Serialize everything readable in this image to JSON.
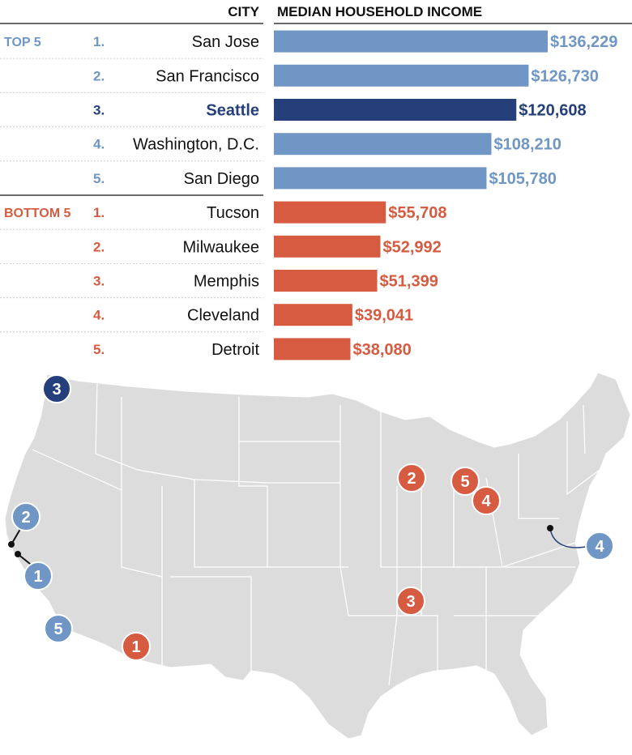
{
  "headers": {
    "city": "CITY",
    "income": "MEDIAN HOUSEHOLD INCOME"
  },
  "colors": {
    "top": "#6f96c4",
    "highlight": "#243f7a",
    "bottom": "#d65b41",
    "map_land": "#dcdcdc",
    "map_border": "#ffffff"
  },
  "chart_data": {
    "type": "bar",
    "orientation": "horizontal",
    "title": "",
    "xlabel": "MEDIAN HOUSEHOLD INCOME",
    "ylabel": "CITY",
    "xlim": [
      0,
      136229
    ],
    "groups": [
      {
        "label": "TOP 5",
        "color": "#6f96c4",
        "items": [
          {
            "rank": "1.",
            "city": "San Jose",
            "value": 136229,
            "value_label": "$136,229"
          },
          {
            "rank": "2.",
            "city": "San Francisco",
            "value": 126730,
            "value_label": "$126,730"
          },
          {
            "rank": "3.",
            "city": "Seattle",
            "value": 120608,
            "value_label": "$120,608",
            "highlight": true
          },
          {
            "rank": "4.",
            "city": "Washington, D.C.",
            "value": 108210,
            "value_label": "$108,210"
          },
          {
            "rank": "5.",
            "city": "San Diego",
            "value": 105780,
            "value_label": "$105,780"
          }
        ]
      },
      {
        "label": "BOTTOM 5",
        "color": "#d65b41",
        "items": [
          {
            "rank": "1.",
            "city": "Tucson",
            "value": 55708,
            "value_label": "$55,708"
          },
          {
            "rank": "2.",
            "city": "Milwaukee",
            "value": 52992,
            "value_label": "$52,992"
          },
          {
            "rank": "3.",
            "city": "Memphis",
            "value": 51399,
            "value_label": "$51,399"
          },
          {
            "rank": "4.",
            "city": "Cleveland",
            "value": 39041,
            "value_label": "$39,041"
          },
          {
            "rank": "5.",
            "city": "Detroit",
            "value": 38080,
            "value_label": "$38,080"
          }
        ]
      }
    ]
  },
  "map": {
    "markers": [
      {
        "label": "3",
        "group": "top",
        "city": "Seattle",
        "highlight": true
      },
      {
        "label": "2",
        "group": "top",
        "city": "San Francisco"
      },
      {
        "label": "1",
        "group": "top",
        "city": "San Jose"
      },
      {
        "label": "5",
        "group": "top",
        "city": "San Diego"
      },
      {
        "label": "4",
        "group": "top",
        "city": "Washington, D.C."
      },
      {
        "label": "1",
        "group": "bottom",
        "city": "Tucson"
      },
      {
        "label": "2",
        "group": "bottom",
        "city": "Milwaukee"
      },
      {
        "label": "3",
        "group": "bottom",
        "city": "Memphis"
      },
      {
        "label": "4",
        "group": "bottom",
        "city": "Cleveland"
      },
      {
        "label": "5",
        "group": "bottom",
        "city": "Detroit"
      }
    ]
  }
}
